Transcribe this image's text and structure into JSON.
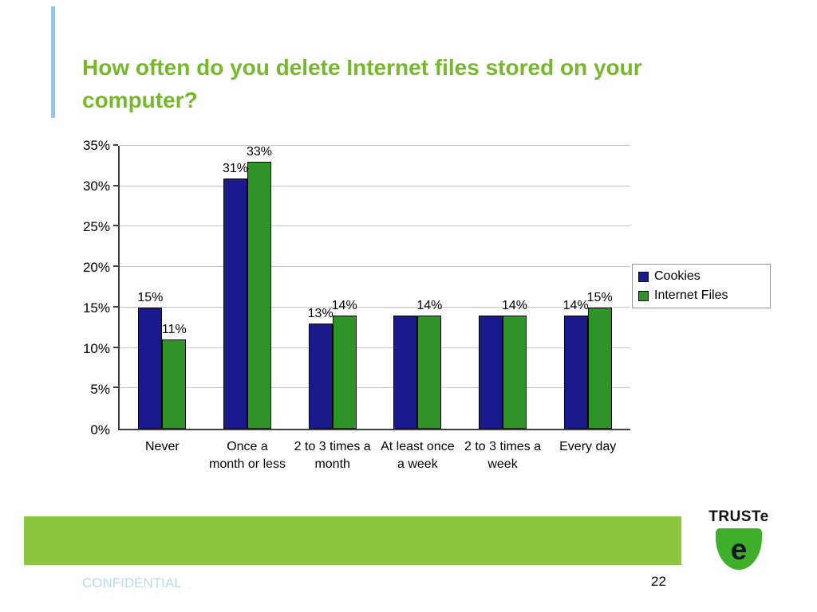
{
  "slide": {
    "title": "How often do you delete Internet files stored on your computer?",
    "footer": {
      "confidential": "CONFIDENTIAL",
      "page_number": "22"
    },
    "logo": {
      "brand": "TRUSTe"
    }
  },
  "colors": {
    "title_green": "#76b82a",
    "accent_line_blue": "#9cc3e5",
    "footer_bar_green": "#8cc63e",
    "shield_green": "#3fae2a",
    "cookies_bar": "#1a1a8e",
    "internet_files_bar": "#2e9428",
    "confidential_text": "#bcd9f0"
  },
  "chart_data": {
    "type": "bar",
    "title": "How often do you delete Internet files stored on your computer?",
    "categories": [
      "Never",
      "Once a month or less",
      "2 to 3 times a month",
      "At least once a week",
      "2 to 3 times a week",
      "Every day"
    ],
    "series": [
      {
        "name": "Cookies",
        "color": "#1a1a8e",
        "values": [
          15,
          31,
          13,
          14,
          14,
          14
        ],
        "labels": [
          "15%",
          "31%",
          "13%",
          null,
          null,
          "14%"
        ]
      },
      {
        "name": "Internet Files",
        "color": "#2e9428",
        "values": [
          11,
          33,
          14,
          14,
          14,
          15
        ],
        "labels": [
          "11%",
          "33%",
          "14%",
          "14%",
          "14%",
          "15%"
        ]
      }
    ],
    "xlabel": "",
    "ylabel": "",
    "ylim": [
      0,
      35
    ],
    "ytick_step": 5,
    "ytick_labels": [
      "0%",
      "5%",
      "10%",
      "15%",
      "20%",
      "25%",
      "30%",
      "35%"
    ],
    "grid": true,
    "legend_position": "right"
  }
}
